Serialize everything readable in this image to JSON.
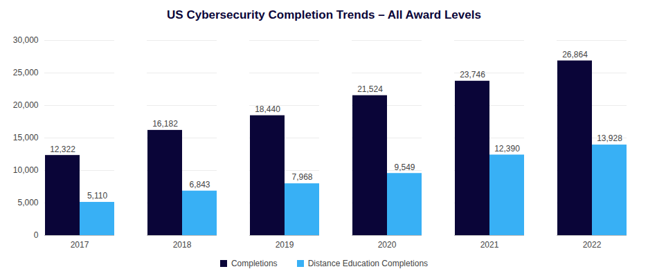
{
  "chart_data": {
    "type": "bar",
    "title": "US Cybersecurity Completion Trends – All Award Levels",
    "categories": [
      "2017",
      "2018",
      "2019",
      "2020",
      "2021",
      "2022"
    ],
    "series": [
      {
        "name": "Completions",
        "color": "#0a0538",
        "values": [
          12322,
          16182,
          18440,
          21524,
          23746,
          26864
        ],
        "value_labels": [
          "12,322",
          "16,182",
          "18,440",
          "21,524",
          "23,746",
          "26,864"
        ]
      },
      {
        "name": "Distance Education Completions",
        "color": "#38b0f5",
        "values": [
          5110,
          6843,
          7968,
          9549,
          12390,
          13928
        ],
        "value_labels": [
          "5,110",
          "6,843",
          "7,968",
          "9,549",
          "12,390",
          "13,928"
        ]
      }
    ],
    "ylim": [
      0,
      30000
    ],
    "yticks": [
      0,
      {
        "value": 5000,
        "label": "5,000"
      },
      {
        "value": 10000,
        "label": "10,000"
      },
      {
        "value": 15000,
        "label": "15,000"
      },
      {
        "value": 20000,
        "label": "20,000"
      },
      {
        "value": 25000,
        "label": "25,000"
      },
      {
        "value": 30000,
        "label": "30,000"
      }
    ],
    "grid": true,
    "legend": "bottom",
    "data_labels": true
  }
}
